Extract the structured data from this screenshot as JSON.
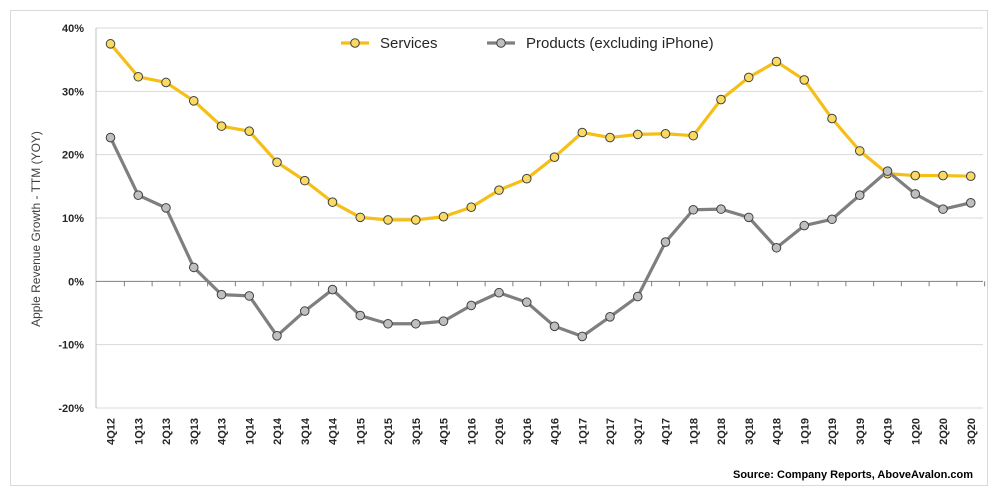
{
  "chart_data": {
    "type": "line",
    "title": "",
    "xlabel": "",
    "ylabel": "Apple Revenue Growth - TTM (YOY)",
    "ylim": [
      -20,
      40
    ],
    "y_ticks": [
      -20,
      -10,
      0,
      10,
      20,
      30,
      40
    ],
    "y_tick_labels": [
      "-20%",
      "-10%",
      "0%",
      "10%",
      "20%",
      "30%",
      "40%"
    ],
    "grid": "horizontal",
    "legend_position": "top-center",
    "categories": [
      "4Q12",
      "1Q13",
      "2Q13",
      "3Q13",
      "4Q13",
      "1Q14",
      "2Q14",
      "3Q14",
      "4Q14",
      "1Q15",
      "2Q15",
      "3Q15",
      "4Q15",
      "1Q16",
      "2Q16",
      "3Q16",
      "4Q16",
      "1Q17",
      "2Q17",
      "3Q17",
      "4Q17",
      "1Q18",
      "2Q18",
      "3Q18",
      "4Q18",
      "1Q19",
      "2Q19",
      "3Q19",
      "4Q19",
      "1Q20",
      "2Q20",
      "3Q20"
    ],
    "series": [
      {
        "name": "Services",
        "color": "#f5bf18",
        "marker_color": "#f9db63",
        "values": [
          37.5,
          32.3,
          31.4,
          28.5,
          24.5,
          23.7,
          18.8,
          15.9,
          12.5,
          10.1,
          9.7,
          9.7,
          10.2,
          11.7,
          14.4,
          16.2,
          19.6,
          23.5,
          22.7,
          23.2,
          23.3,
          23.0,
          28.7,
          32.2,
          34.7,
          31.8,
          25.7,
          20.6,
          17.0,
          16.7,
          16.7,
          16.6
        ]
      },
      {
        "name": "Products (excluding iPhone)",
        "color": "#7f7f7f",
        "marker_color": "#bfbfbf",
        "values": [
          22.7,
          13.6,
          11.6,
          2.2,
          -2.1,
          -2.3,
          -8.6,
          -4.7,
          -1.3,
          -5.4,
          -6.7,
          -6.7,
          -6.3,
          -3.8,
          -1.8,
          -3.3,
          -7.1,
          -8.7,
          -5.6,
          -2.4,
          6.2,
          11.3,
          11.4,
          10.1,
          5.3,
          8.8,
          9.8,
          13.6,
          17.4,
          13.8,
          11.4,
          12.4
        ]
      }
    ],
    "annotation": "Source: Company Reports, AboveAvalon.com"
  }
}
